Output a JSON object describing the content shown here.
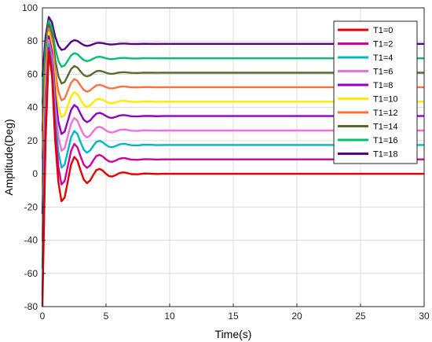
{
  "chart_data": {
    "type": "line",
    "title": "",
    "xlabel": "Time(s)",
    "ylabel": "Amplitude(Deg)",
    "xlim": [
      0,
      30
    ],
    "ylim": [
      -80,
      100
    ],
    "x_ticks": [
      0,
      5,
      10,
      15,
      20,
      25,
      30
    ],
    "y_ticks": [
      -80,
      -60,
      -40,
      -20,
      0,
      20,
      40,
      60,
      80,
      100
    ],
    "grid": true,
    "legend_position": "top-right",
    "x_samples": [
      0,
      0.25,
      0.5,
      0.75,
      1.0,
      1.25,
      1.5,
      1.75,
      2.0,
      2.25,
      2.5,
      2.75,
      3.0,
      3.25,
      3.5,
      3.75,
      4.0,
      4.25,
      4.5,
      4.75,
      5.0,
      5.25,
      5.5,
      5.75,
      6.0,
      6.25,
      6.5,
      6.75,
      7.0,
      7.5,
      8.0,
      8.5,
      9.0,
      9.5,
      10.0,
      11.0,
      12.0,
      15.0,
      20.0,
      25.0,
      30.0
    ],
    "response_shape": [
      -90.2,
      19.4,
      73.6,
      59.1,
      20.3,
      -5.0,
      -16.5,
      -14.3,
      -4.4,
      5.5,
      10.2,
      8.1,
      2.0,
      -3.5,
      -5.6,
      -4.0,
      -0.6,
      2.3,
      3.0,
      1.9,
      0.0,
      -1.4,
      -1.6,
      -0.8,
      0.3,
      0.8,
      0.8,
      0.3,
      -0.2,
      -0.3,
      0.2,
      0.1,
      -0.1,
      0.0,
      0.0,
      0.0,
      0.0,
      0.0,
      0.0,
      0.0,
      0.0
    ],
    "series": [
      {
        "name": "T1=0",
        "color": "#e00000",
        "final_value": 0
      },
      {
        "name": "T1=2",
        "color": "#d000a0",
        "final_value": 8.7
      },
      {
        "name": "T1=4",
        "color": "#00b8c0",
        "final_value": 17.4
      },
      {
        "name": "T1=6",
        "color": "#f070d8",
        "final_value": 26.1
      },
      {
        "name": "T1=8",
        "color": "#9000c0",
        "final_value": 34.8
      },
      {
        "name": "T1=10",
        "color": "#ffea00",
        "final_value": 43.5
      },
      {
        "name": "T1=12",
        "color": "#ff7040",
        "final_value": 52.2
      },
      {
        "name": "T1=14",
        "color": "#556b2f",
        "final_value": 60.9
      },
      {
        "name": "T1=16",
        "color": "#00c070",
        "final_value": 69.6
      },
      {
        "name": "T1=18",
        "color": "#5a0080",
        "final_value": 78.3
      }
    ]
  }
}
